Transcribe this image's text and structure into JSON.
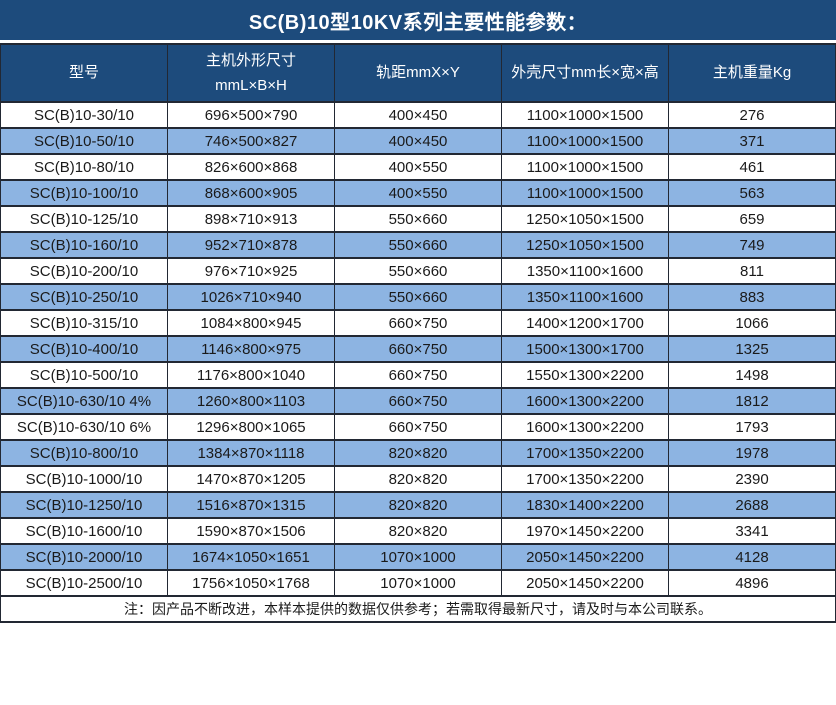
{
  "title": "SC(B)10型10KV系列主要性能参数：",
  "table": {
    "headers": [
      [
        "型号"
      ],
      [
        "主机外形尺寸",
        "mmL×B×H"
      ],
      [
        "轨距mmX×Y"
      ],
      [
        "外壳尺寸mm长×宽×高"
      ],
      [
        "主机重量Kg"
      ]
    ],
    "rows": [
      [
        "SC(B)10-30/10",
        "696×500×790",
        "400×450",
        "1100×1000×1500",
        "276"
      ],
      [
        "SC(B)10-50/10",
        "746×500×827",
        "400×450",
        "1100×1000×1500",
        "371"
      ],
      [
        "SC(B)10-80/10",
        "826×600×868",
        "400×550",
        "1100×1000×1500",
        "461"
      ],
      [
        "SC(B)10-100/10",
        "868×600×905",
        "400×550",
        "1100×1000×1500",
        "563"
      ],
      [
        "SC(B)10-125/10",
        "898×710×913",
        "550×660",
        "1250×1050×1500",
        "659"
      ],
      [
        "SC(B)10-160/10",
        "952×710×878",
        "550×660",
        "1250×1050×1500",
        "749"
      ],
      [
        "SC(B)10-200/10",
        "976×710×925",
        "550×660",
        "1350×1100×1600",
        "811"
      ],
      [
        "SC(B)10-250/10",
        "1026×710×940",
        "550×660",
        "1350×1100×1600",
        "883"
      ],
      [
        "SC(B)10-315/10",
        "1084×800×945",
        "660×750",
        "1400×1200×1700",
        "1066"
      ],
      [
        "SC(B)10-400/10",
        "1146×800×975",
        "660×750",
        "1500×1300×1700",
        "1325"
      ],
      [
        "SC(B)10-500/10",
        "1176×800×1040",
        "660×750",
        "1550×1300×2200",
        "1498"
      ],
      [
        "SC(B)10-630/10 4%",
        "1260×800×1103",
        "660×750",
        "1600×1300×2200",
        "1812"
      ],
      [
        "SC(B)10-630/10 6%",
        "1296×800×1065",
        "660×750",
        "1600×1300×2200",
        "1793"
      ],
      [
        "SC(B)10-800/10",
        "1384×870×1118",
        "820×820",
        "1700×1350×2200",
        "1978"
      ],
      [
        "SC(B)10-1000/10",
        "1470×870×1205",
        "820×820",
        "1700×1350×2200",
        "2390"
      ],
      [
        "SC(B)10-1250/10",
        "1516×870×1315",
        "820×820",
        "1830×1400×2200",
        "2688"
      ],
      [
        "SC(B)10-1600/10",
        "1590×870×1506",
        "820×820",
        "1970×1450×2200",
        "3341"
      ],
      [
        "SC(B)10-2000/10",
        "1674×1050×1651",
        "1070×1000",
        "2050×1450×2200",
        "4128"
      ],
      [
        "SC(B)10-2500/10",
        "1756×1050×1768",
        "1070×1000",
        "2050×1450×2200",
        "4896"
      ]
    ]
  },
  "footer_note": "注：因产品不断改进，本样本提供的数据仅供参考；若需取得最新尺寸，请及时与本公司联系。",
  "colors": {
    "header_bg": "#1d4b7c",
    "row_alt_bg": "#8db4e2",
    "border": "#222833",
    "text": "#1a1a1a",
    "header_text": "#ffffff"
  }
}
